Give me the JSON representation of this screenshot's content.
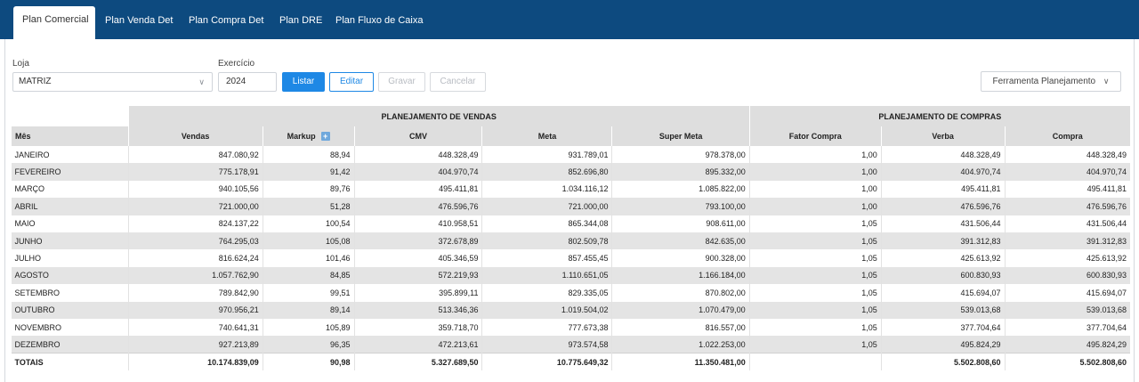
{
  "tabs": [
    {
      "label": "Plan Comercial",
      "active": true
    },
    {
      "label": "Plan Venda Det",
      "active": false
    },
    {
      "label": "Plan Compra Det",
      "active": false
    },
    {
      "label": "Plan DRE",
      "active": false
    },
    {
      "label": "Plan Fluxo de Caixa",
      "active": false
    }
  ],
  "filters": {
    "loja_label": "Loja",
    "loja_value": "MATRIZ",
    "exercicio_label": "Exercício",
    "exercicio_value": "2024"
  },
  "buttons": {
    "listar": "Listar",
    "editar": "Editar",
    "gravar": "Gravar",
    "cancelar": "Cancelar",
    "ferramenta": "Ferramenta Planejamento"
  },
  "colors": {
    "tabbar": "#0d4a7f",
    "primary": "#1e88e5",
    "header_bg": "#dedede",
    "stripe_bg": "#e4e4e4"
  },
  "table": {
    "group_headers": {
      "vendas": "PLANEJAMENTO DE VENDAS",
      "compras": "PLANEJAMENTO DE COMPRAS"
    },
    "columns": [
      "Mês",
      "Vendas",
      "Markup",
      "CMV",
      "Meta",
      "Super Meta",
      "Fator Compra",
      "Verba",
      "Compra"
    ],
    "rows": [
      [
        "JANEIRO",
        "847.080,92",
        "88,94",
        "448.328,49",
        "931.789,01",
        "978.378,00",
        "1,00",
        "448.328,49",
        "448.328,49"
      ],
      [
        "FEVEREIRO",
        "775.178,91",
        "91,42",
        "404.970,74",
        "852.696,80",
        "895.332,00",
        "1,00",
        "404.970,74",
        "404.970,74"
      ],
      [
        "MARÇO",
        "940.105,56",
        "89,76",
        "495.411,81",
        "1.034.116,12",
        "1.085.822,00",
        "1,00",
        "495.411,81",
        "495.411,81"
      ],
      [
        "ABRIL",
        "721.000,00",
        "51,28",
        "476.596,76",
        "721.000,00",
        "793.100,00",
        "1,00",
        "476.596,76",
        "476.596,76"
      ],
      [
        "MAIO",
        "824.137,22",
        "100,54",
        "410.958,51",
        "865.344,08",
        "908.611,00",
        "1,05",
        "431.506,44",
        "431.506,44"
      ],
      [
        "JUNHO",
        "764.295,03",
        "105,08",
        "372.678,89",
        "802.509,78",
        "842.635,00",
        "1,05",
        "391.312,83",
        "391.312,83"
      ],
      [
        "JULHO",
        "816.624,24",
        "101,46",
        "405.346,59",
        "857.455,45",
        "900.328,00",
        "1,05",
        "425.613,92",
        "425.613,92"
      ],
      [
        "AGOSTO",
        "1.057.762,90",
        "84,85",
        "572.219,93",
        "1.110.651,05",
        "1.166.184,00",
        "1,05",
        "600.830,93",
        "600.830,93"
      ],
      [
        "SETEMBRO",
        "789.842,90",
        "99,51",
        "395.899,11",
        "829.335,05",
        "870.802,00",
        "1,05",
        "415.694,07",
        "415.694,07"
      ],
      [
        "OUTUBRO",
        "970.956,21",
        "89,14",
        "513.346,36",
        "1.019.504,02",
        "1.070.479,00",
        "1,05",
        "539.013,68",
        "539.013,68"
      ],
      [
        "NOVEMBRO",
        "740.641,31",
        "105,89",
        "359.718,70",
        "777.673,38",
        "816.557,00",
        "1,05",
        "377.704,64",
        "377.704,64"
      ],
      [
        "DEZEMBRO",
        "927.213,89",
        "96,35",
        "472.213,61",
        "973.574,58",
        "1.022.253,00",
        "1,05",
        "495.824,29",
        "495.824,29"
      ]
    ],
    "totals": [
      "TOTAIS",
      "10.174.839,09",
      "90,98",
      "5.327.689,50",
      "10.775.649,32",
      "11.350.481,00",
      "",
      "5.502.808,60",
      "5.502.808,60"
    ]
  }
}
